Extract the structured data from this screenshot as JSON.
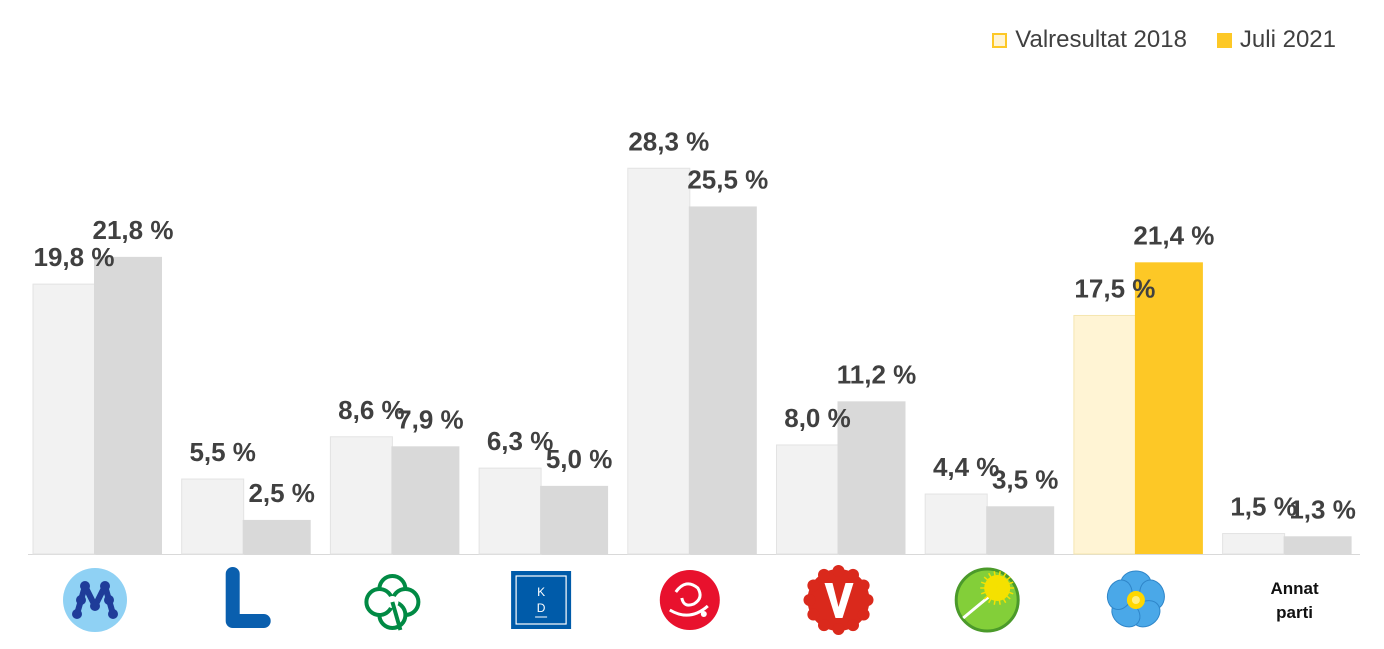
{
  "legend": {
    "series1": "Valresultat 2018",
    "series2": "Juli 2021"
  },
  "chart_data": {
    "type": "bar",
    "categories": [
      "M",
      "L",
      "C",
      "KD",
      "S",
      "V",
      "MP",
      "SD",
      "Annat parti"
    ],
    "category_icons": [
      "moderaterna-logo-icon",
      "liberalerna-logo-icon",
      "centerpartiet-clover-icon",
      "kristdemokraterna-logo-icon",
      "socialdemokraterna-rose-icon",
      "vansterpartiet-logo-icon",
      "miljopartiet-dandelion-icon",
      "sverigedemokraterna-flower-icon",
      null
    ],
    "category_text": [
      "",
      "",
      "",
      "",
      "",
      "",
      "",
      "",
      "Annat parti"
    ],
    "series": [
      {
        "name": "Valresultat 2018",
        "values": [
          19.8,
          5.5,
          8.6,
          6.3,
          28.3,
          8.0,
          4.4,
          17.5,
          1.5
        ],
        "labels": [
          "19,8 %",
          "5,5 %",
          "8,6 %",
          "6,3 %",
          "28,3 %",
          "8,0 %",
          "4,4 %",
          "17,5 %",
          "1,5 %"
        ]
      },
      {
        "name": "Juli 2021",
        "values": [
          21.8,
          2.5,
          7.9,
          5.0,
          25.5,
          11.2,
          3.5,
          21.4,
          1.3
        ],
        "labels": [
          "21,8 %",
          "2,5 %",
          "7,9 %",
          "5,0 %",
          "25,5 %",
          "11,2 %",
          "3,5 %",
          "21,4 %",
          "1,3 %"
        ]
      }
    ],
    "colors": {
      "series1": "#f2f2f2",
      "series2": "#d9d9d9",
      "highlight_series1": "#fff4d4",
      "highlight_series2": "#fdc826",
      "highlight_index": 7
    },
    "ylim": [
      0,
      30
    ],
    "grid": false,
    "legend_position": "top-right"
  }
}
